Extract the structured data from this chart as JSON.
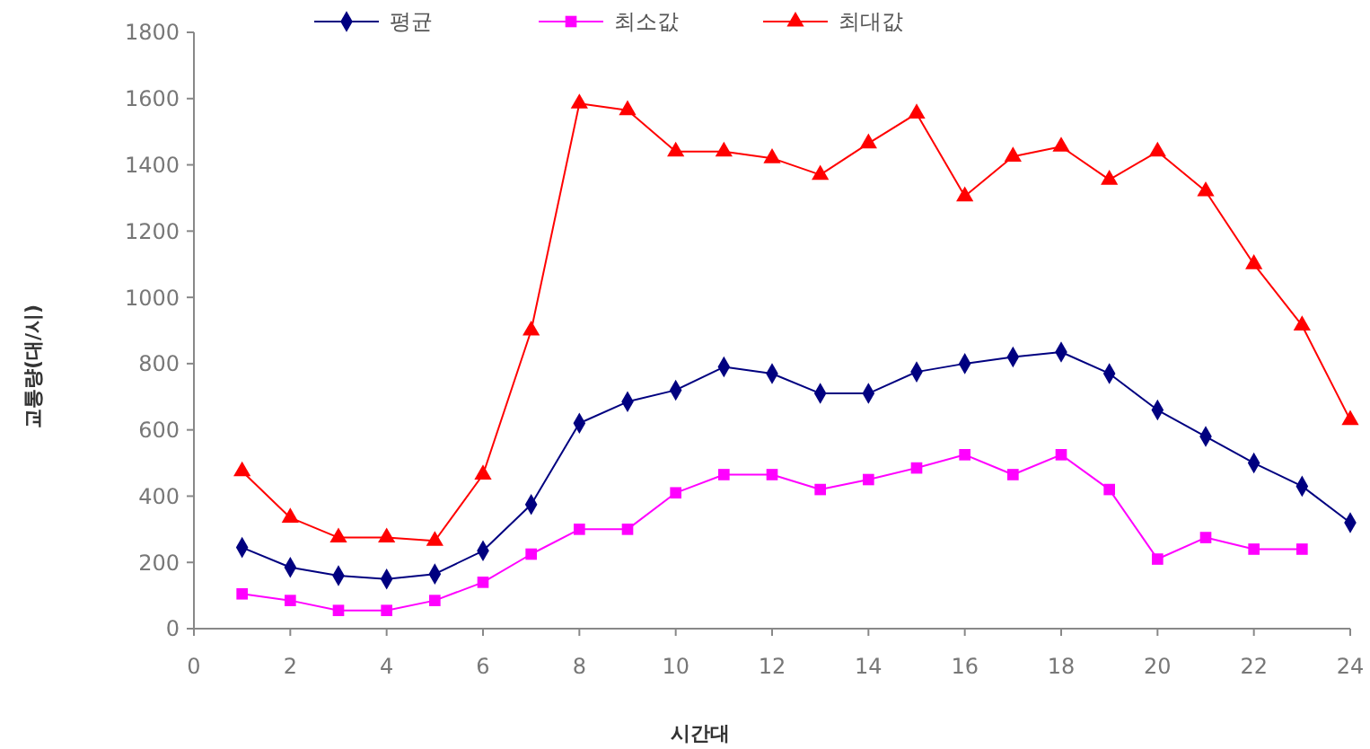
{
  "chart_data": {
    "type": "line",
    "xlabel": "시간대",
    "ylabel": "교통량(대/시)",
    "x": [
      1,
      2,
      3,
      4,
      5,
      6,
      7,
      8,
      9,
      10,
      11,
      12,
      13,
      14,
      15,
      16,
      17,
      18,
      19,
      20,
      21,
      22,
      23,
      24
    ],
    "xlim": [
      0,
      24
    ],
    "xticks": [
      0,
      2,
      4,
      6,
      8,
      10,
      12,
      14,
      16,
      18,
      20,
      22,
      24
    ],
    "ylim": [
      0,
      1800
    ],
    "yticks": [
      0,
      200,
      400,
      600,
      800,
      1000,
      1200,
      1400,
      1600,
      1800
    ],
    "grid": false,
    "legend": "top",
    "line_style": "solid",
    "series": [
      {
        "name": "평균",
        "color": "#000080",
        "marker": "diamond",
        "values": [
          245,
          185,
          160,
          150,
          165,
          235,
          375,
          620,
          685,
          720,
          790,
          770,
          710,
          710,
          775,
          800,
          820,
          835,
          770,
          660,
          580,
          500,
          430,
          320
        ]
      },
      {
        "name": "최소값",
        "color": "#ff00ff",
        "marker": "square",
        "values": [
          105,
          85,
          55,
          55,
          85,
          140,
          225,
          300,
          300,
          410,
          465,
          465,
          420,
          450,
          485,
          525,
          465,
          525,
          420,
          210,
          275,
          240,
          240,
          null
        ]
      },
      {
        "name": "최대값",
        "color": "#ff0000",
        "marker": "triangle",
        "values": [
          475,
          335,
          275,
          275,
          265,
          465,
          900,
          1585,
          1565,
          1440,
          1440,
          1420,
          1370,
          1465,
          1555,
          1305,
          1425,
          1455,
          1355,
          1440,
          1320,
          1100,
          915,
          630
        ]
      }
    ]
  }
}
